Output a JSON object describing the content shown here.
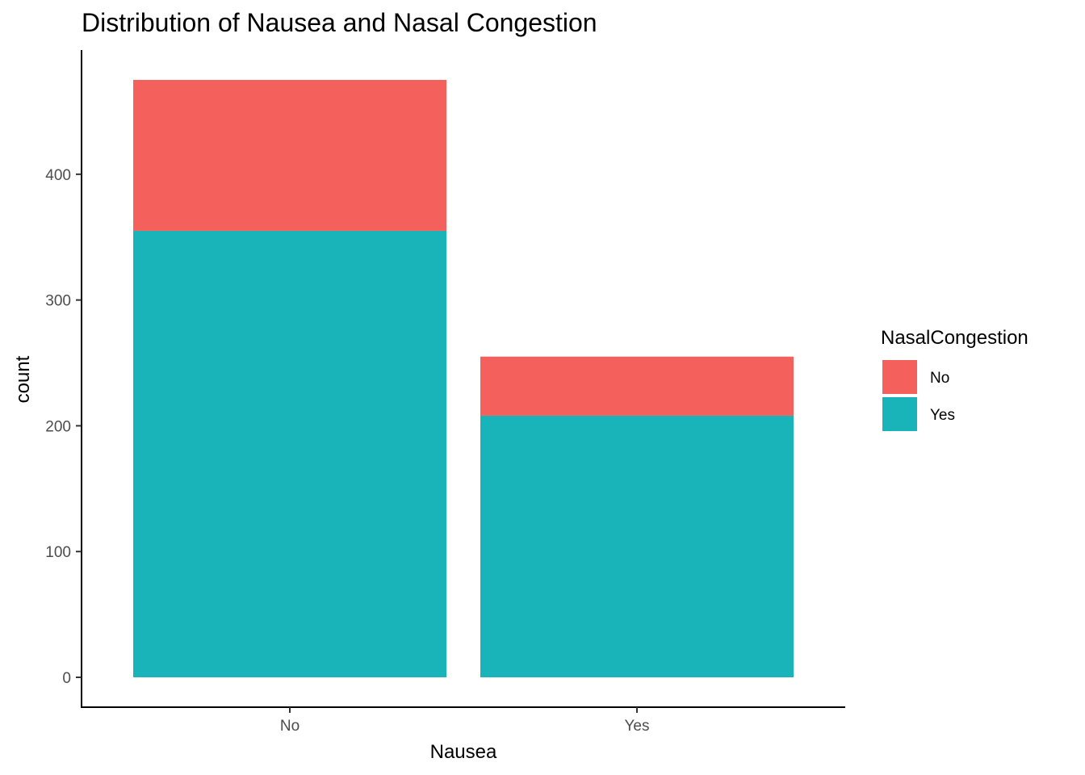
{
  "chart_data": {
    "type": "bar",
    "stacked": true,
    "title": "Distribution of Nausea and Nasal Congestion",
    "xlabel": "Nausea",
    "ylabel": "count",
    "categories": [
      "No",
      "Yes"
    ],
    "series": [
      {
        "name": "Yes",
        "values": [
          355,
          208
        ],
        "color": "#19B4B9"
      },
      {
        "name": "No",
        "values": [
          120,
          47
        ],
        "color": "#F4615C"
      }
    ],
    "ylim": [
      0,
      475
    ],
    "yticks": [
      0,
      100,
      200,
      300,
      400
    ],
    "grid": false,
    "legend": {
      "title": "NasalCongestion",
      "placement": "right",
      "entries": [
        {
          "label": "No",
          "color": "#F4615C"
        },
        {
          "label": "Yes",
          "color": "#19B4B9"
        }
      ]
    }
  }
}
